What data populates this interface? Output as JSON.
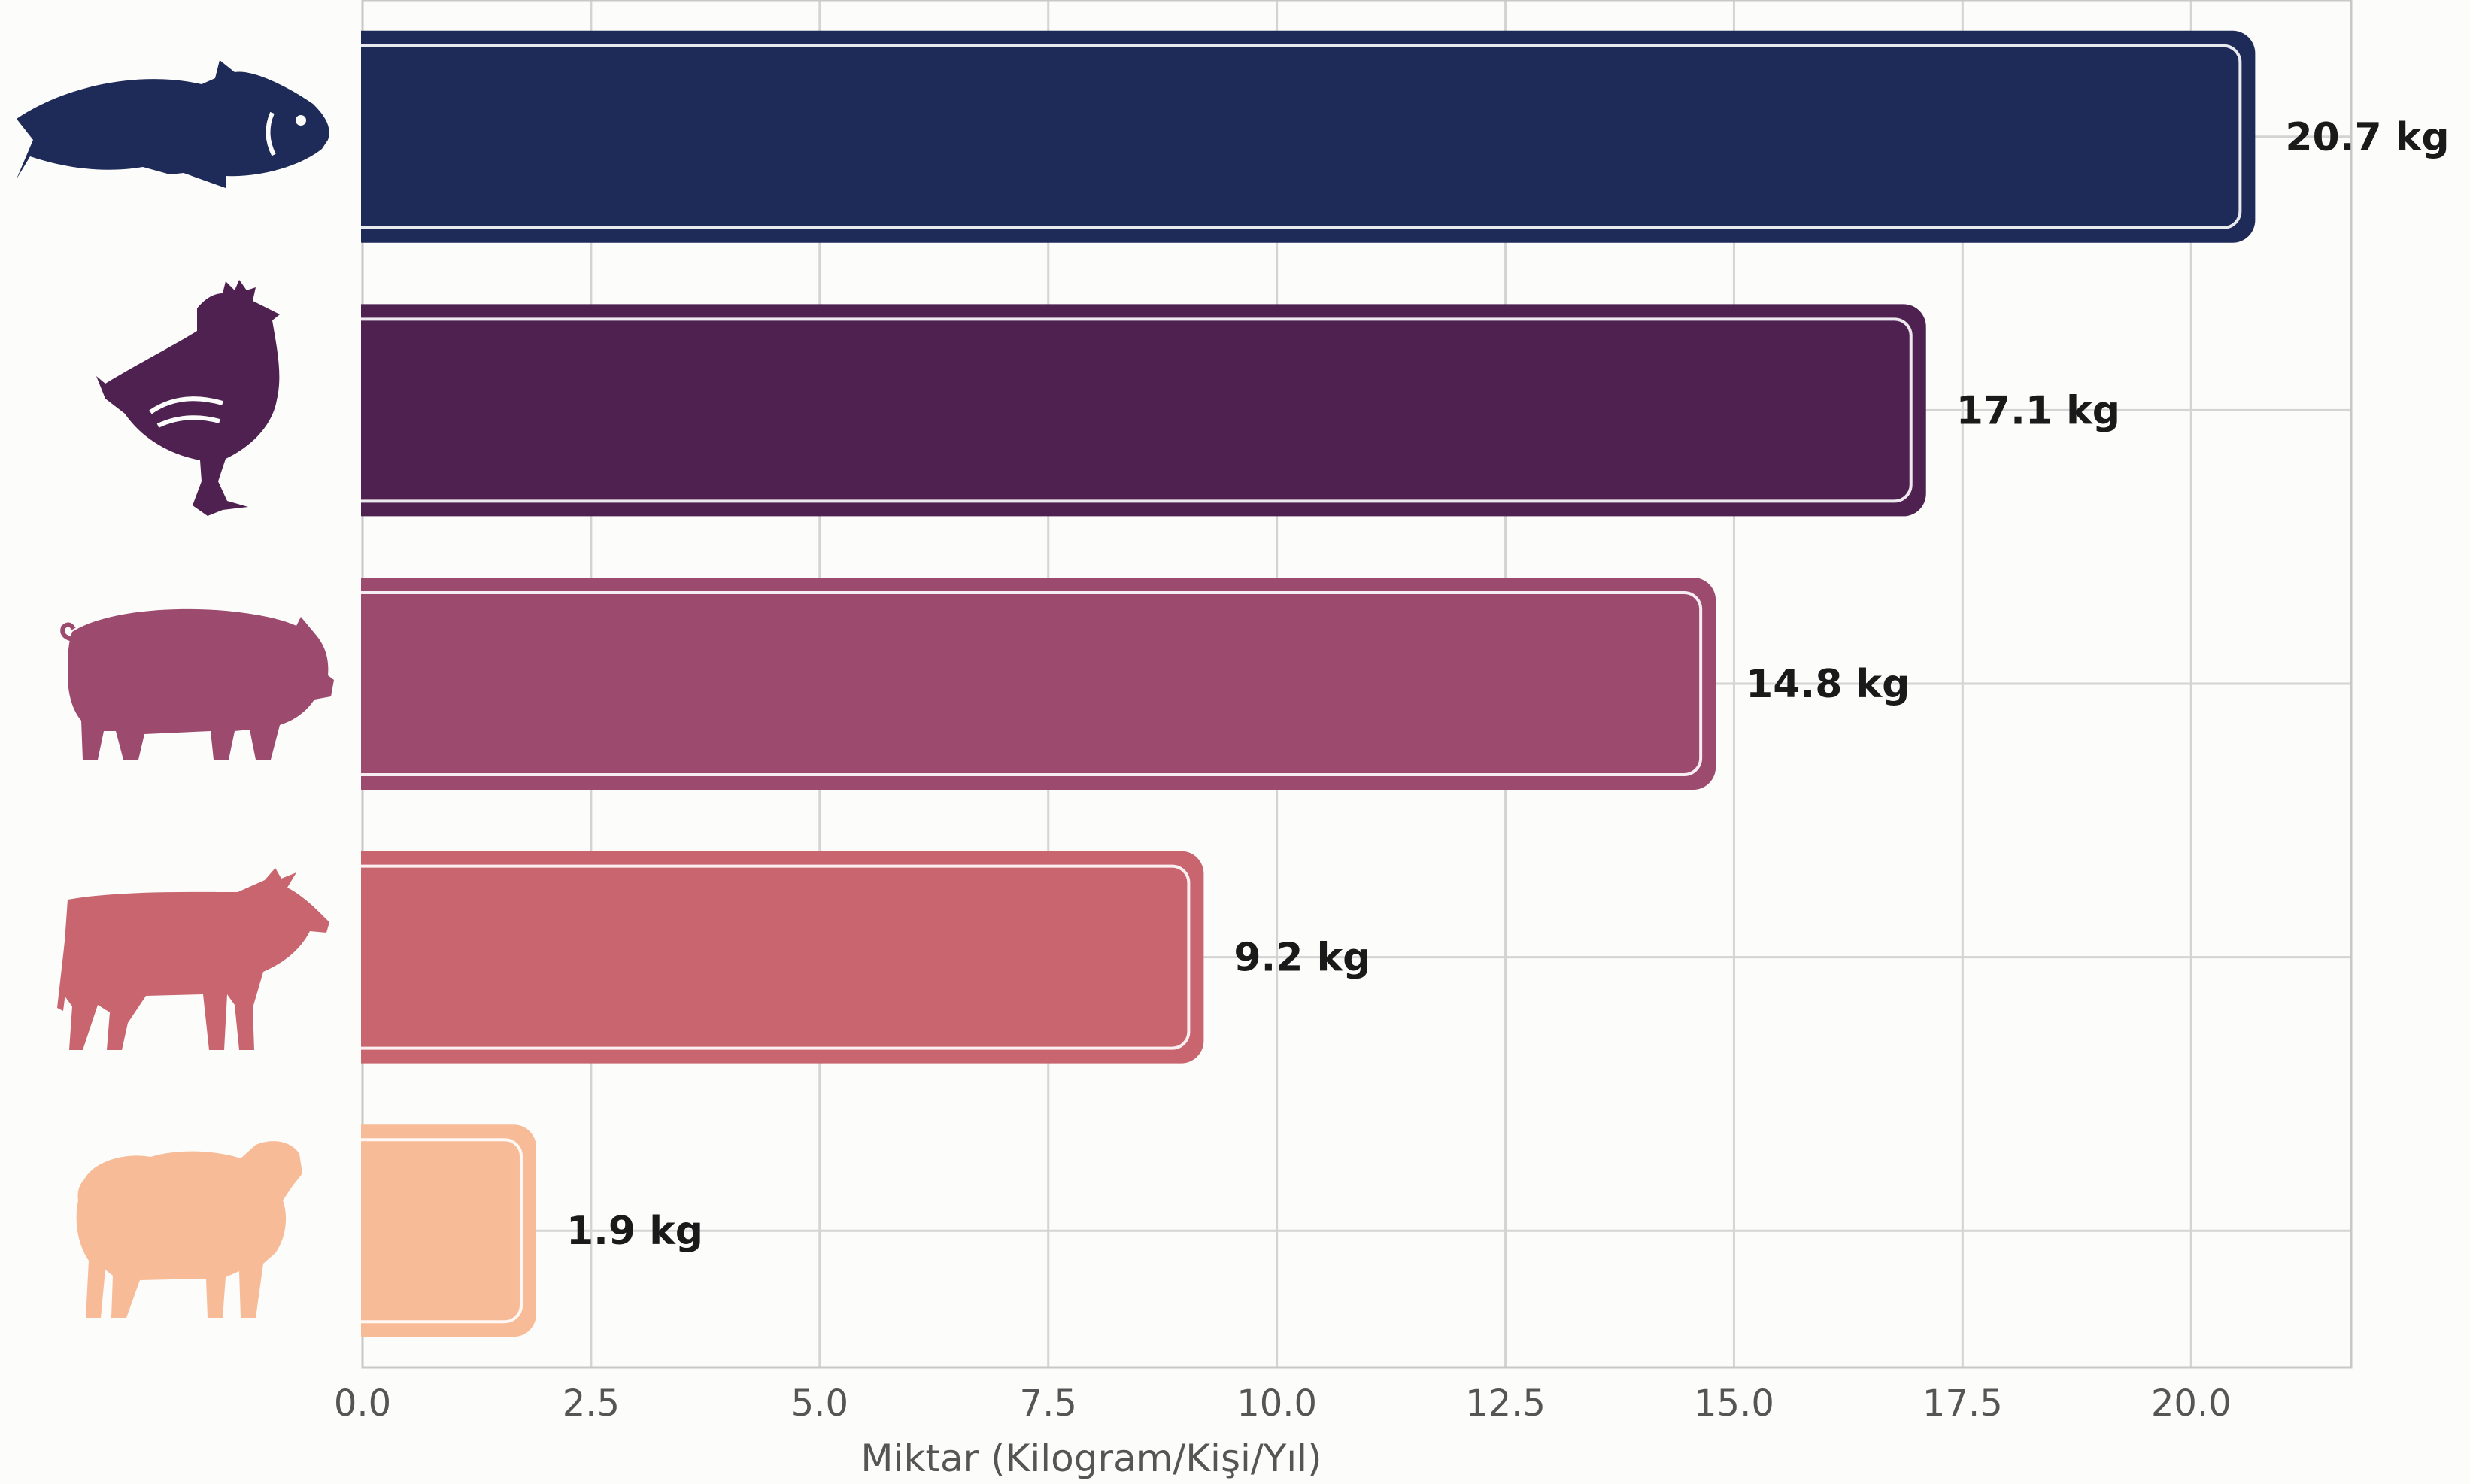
{
  "chart_data": {
    "type": "bar",
    "orientation": "horizontal",
    "categories": [
      "fish",
      "chicken",
      "pig",
      "cow",
      "sheep"
    ],
    "values": [
      20.7,
      17.1,
      14.8,
      9.2,
      1.9
    ],
    "value_labels": [
      "20.7 kg",
      "17.1 kg",
      "14.8 kg",
      "9.2 kg",
      "1.9 kg"
    ],
    "unit": "kg",
    "xlabel": "Miktar (Kilogram/Kişi/Yıl)",
    "ylabel": "",
    "xlim": [
      0,
      21.75
    ],
    "xticks": [
      "0.0",
      "2.5",
      "5.0",
      "7.5",
      "10.0",
      "12.5",
      "15.0",
      "17.5",
      "20.0"
    ],
    "xtick_values": [
      0,
      2.5,
      5,
      7.5,
      10,
      12.5,
      15,
      17.5,
      20
    ],
    "grid": true,
    "legend": "none",
    "colors": [
      "#1e2a57",
      "#4f2150",
      "#9c4a6e",
      "#c9656f",
      "#f7bb98"
    ],
    "icons": [
      "fish-icon",
      "chicken-icon",
      "pig-icon",
      "cow-icon",
      "sheep-icon"
    ]
  }
}
